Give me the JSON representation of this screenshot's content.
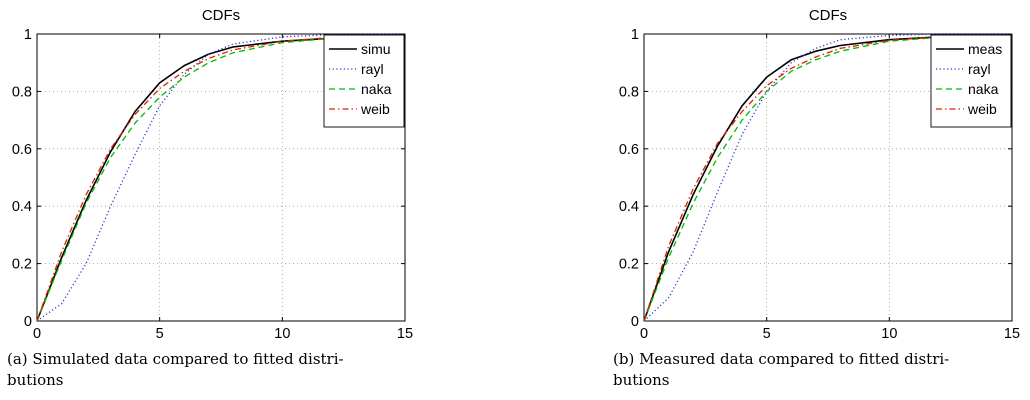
{
  "chart_data": [
    {
      "type": "line",
      "title": "CDFs",
      "xlabel": "",
      "ylabel": "",
      "xlim": [
        0,
        15
      ],
      "ylim": [
        0,
        1
      ],
      "xticks": [
        0,
        5,
        10,
        15
      ],
      "yticks": [
        0,
        0.2,
        0.4,
        0.6,
        0.8,
        1
      ],
      "xtick_labels": [
        "0",
        "5",
        "10",
        "15"
      ],
      "ytick_labels": [
        "0",
        "0.2",
        "0.4",
        "0.6",
        "0.8",
        "1"
      ],
      "grid": true,
      "legend_position": "top-right",
      "series": [
        {
          "name": "simu",
          "color": "#000000",
          "dash": "solid",
          "x": [
            0,
            1,
            2,
            3,
            4,
            5,
            6,
            7,
            8,
            10,
            12,
            15
          ],
          "y": [
            0,
            0.22,
            0.42,
            0.59,
            0.73,
            0.83,
            0.89,
            0.93,
            0.955,
            0.975,
            0.985,
            0.99
          ]
        },
        {
          "name": "rayl",
          "color": "#3333cc",
          "dash": "dotted",
          "x": [
            0,
            1,
            2,
            3,
            4,
            5,
            6,
            7,
            8,
            10,
            12,
            15
          ],
          "y": [
            0,
            0.06,
            0.2,
            0.4,
            0.58,
            0.75,
            0.86,
            0.93,
            0.965,
            0.99,
            0.998,
            1
          ]
        },
        {
          "name": "naka",
          "color": "#00bb00",
          "dash": "dashed",
          "x": [
            0,
            1,
            2,
            3,
            4,
            5,
            6,
            7,
            8,
            10,
            12,
            15
          ],
          "y": [
            0,
            0.21,
            0.41,
            0.57,
            0.69,
            0.78,
            0.85,
            0.9,
            0.935,
            0.97,
            0.985,
            0.995
          ]
        },
        {
          "name": "weib",
          "color": "#dd2200",
          "dash": "dashdot",
          "x": [
            0,
            1,
            2,
            3,
            4,
            5,
            6,
            7,
            8,
            10,
            12,
            15
          ],
          "y": [
            0,
            0.24,
            0.44,
            0.6,
            0.72,
            0.81,
            0.87,
            0.915,
            0.945,
            0.975,
            0.988,
            0.995
          ]
        }
      ]
    },
    {
      "type": "line",
      "title": "CDFs",
      "xlabel": "",
      "ylabel": "",
      "xlim": [
        0,
        15
      ],
      "ylim": [
        0,
        1
      ],
      "xticks": [
        0,
        5,
        10,
        15
      ],
      "yticks": [
        0,
        0.2,
        0.4,
        0.6,
        0.8,
        1
      ],
      "xtick_labels": [
        "0",
        "5",
        "10",
        "15"
      ],
      "ytick_labels": [
        "0",
        "0.2",
        "0.4",
        "0.6",
        "0.8",
        "1"
      ],
      "grid": true,
      "legend_position": "top-right",
      "series": [
        {
          "name": "meas",
          "color": "#000000",
          "dash": "solid",
          "x": [
            0,
            1,
            2,
            3,
            4,
            5,
            6,
            7,
            8,
            10,
            12,
            15
          ],
          "y": [
            0,
            0.24,
            0.44,
            0.61,
            0.75,
            0.85,
            0.91,
            0.94,
            0.96,
            0.98,
            0.99,
            0.995
          ]
        },
        {
          "name": "rayl",
          "color": "#3333cc",
          "dash": "dotted",
          "x": [
            0,
            1,
            2,
            3,
            4,
            5,
            6,
            7,
            8,
            10,
            12,
            15
          ],
          "y": [
            0,
            0.08,
            0.24,
            0.45,
            0.65,
            0.8,
            0.9,
            0.95,
            0.98,
            0.995,
            1,
            1
          ]
        },
        {
          "name": "naka",
          "color": "#00bb00",
          "dash": "dashed",
          "x": [
            0,
            1,
            2,
            3,
            4,
            5,
            6,
            7,
            8,
            10,
            12,
            15
          ],
          "y": [
            0,
            0.22,
            0.41,
            0.57,
            0.7,
            0.8,
            0.87,
            0.91,
            0.94,
            0.975,
            0.988,
            0.995
          ]
        },
        {
          "name": "weib",
          "color": "#dd2200",
          "dash": "dashdot",
          "x": [
            0,
            1,
            2,
            3,
            4,
            5,
            6,
            7,
            8,
            10,
            12,
            15
          ],
          "y": [
            0,
            0.26,
            0.46,
            0.62,
            0.73,
            0.82,
            0.88,
            0.92,
            0.95,
            0.978,
            0.99,
            0.996
          ]
        }
      ]
    }
  ],
  "captions": {
    "a_line1": "(a) Simulated data compared to fitted distri-",
    "a_line2": "butions",
    "b_line1": "(b) Measured data compared to fitted distri-",
    "b_line2": "butions"
  }
}
